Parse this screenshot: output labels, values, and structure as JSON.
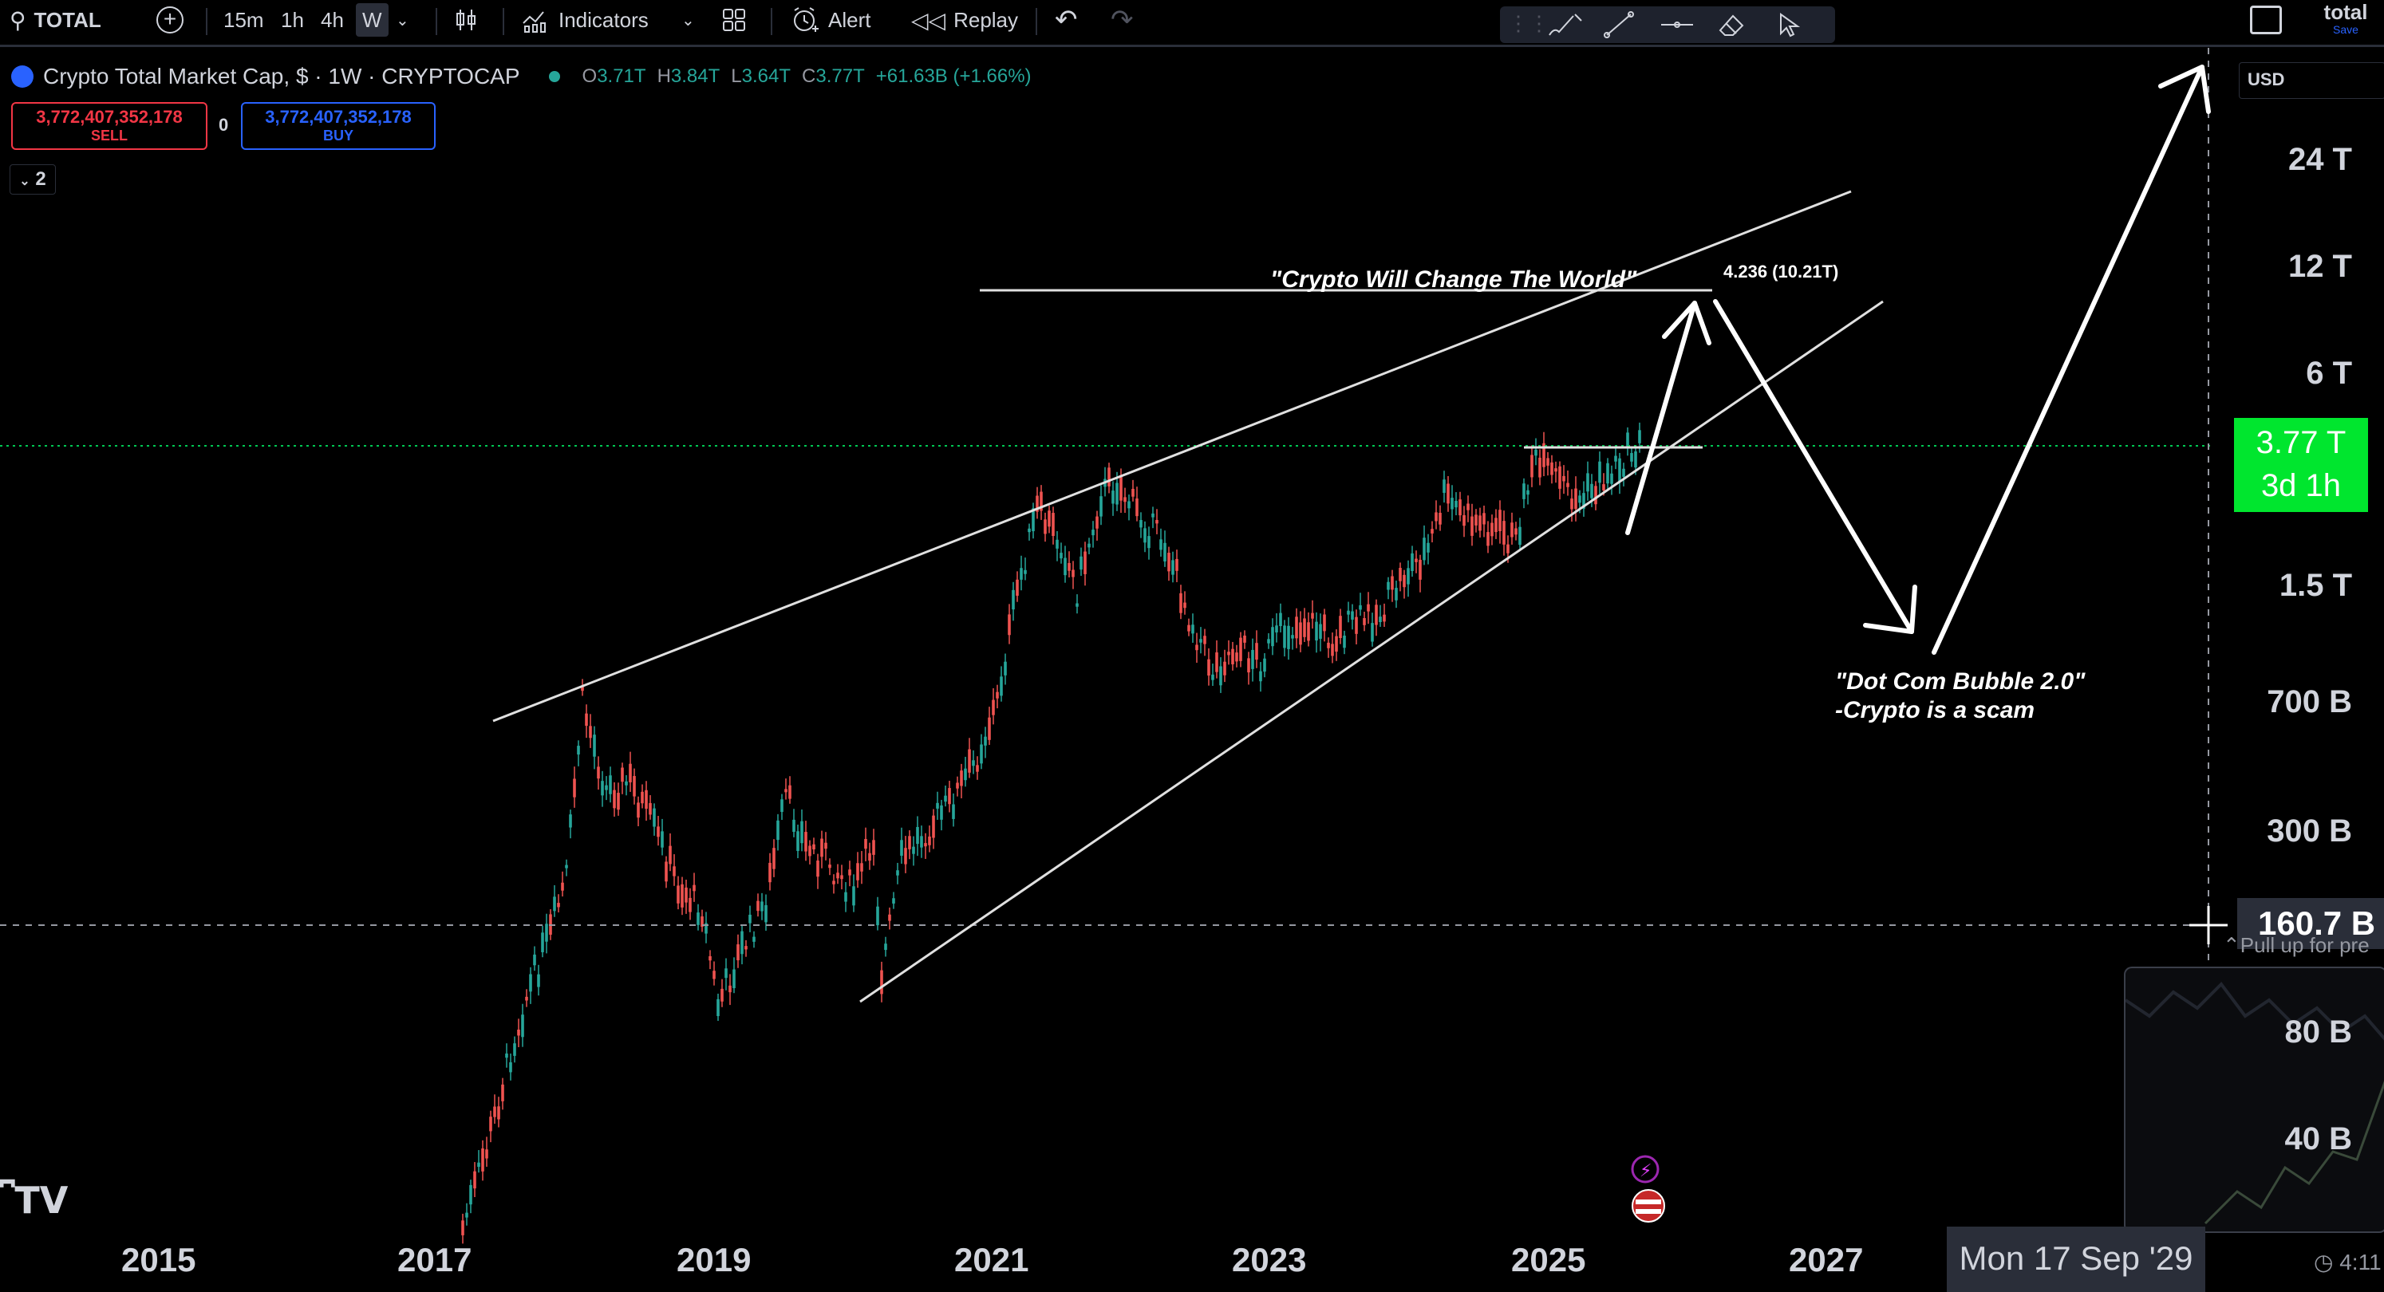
{
  "toolbar": {
    "symbol": "TOTAL",
    "intervals": [
      "15m",
      "1h",
      "4h",
      "W"
    ],
    "indicators_label": "Indicators",
    "alert_label": "Alert",
    "replay_label": "Replay",
    "layout_name": "total",
    "save_label": "Save"
  },
  "legend": {
    "title": "Crypto Total Market Cap, $ · 1W · CRYPTOCAP",
    "open": "3.71T",
    "high": "3.84T",
    "low": "3.64T",
    "close": "3.77T",
    "change": "+61.63B (+1.66%)",
    "collapse_count": "2"
  },
  "trade": {
    "sell_price": "3,772,407,352,178",
    "sell_label": "SELL",
    "spread": "0",
    "buy_price": "3,772,407,352,178",
    "buy_label": "BUY"
  },
  "price_axis": {
    "currency": "USD",
    "labels": [
      "24 T",
      "12 T",
      "6 T",
      "1.5 T",
      "700 B",
      "300 B",
      "80 B",
      "40 B"
    ],
    "current_price": "3.77 T",
    "countdown": "3d 1h",
    "crosshair_price": "160.7 B",
    "pull_up_text": "Pull up for pre"
  },
  "time_axis": {
    "labels": [
      "2015",
      "2017",
      "2019",
      "2021",
      "2023",
      "2025",
      "2027"
    ],
    "crosshair_date": "Mon 17 Sep '29",
    "clock": "4:11"
  },
  "annotations": {
    "top_quote": "\"Crypto Will Change The World\"",
    "fib_label": "4.236 (10.21T)",
    "bottom_quote_1": "\"Dot Com Bubble 2.0\"",
    "bottom_quote_2": "-Crypto is a scam"
  },
  "colors": {
    "up": "#26a69a",
    "down": "#ef5350",
    "price_tag": "#00e62e",
    "sell": "#f23645",
    "buy": "#2962ff"
  }
}
